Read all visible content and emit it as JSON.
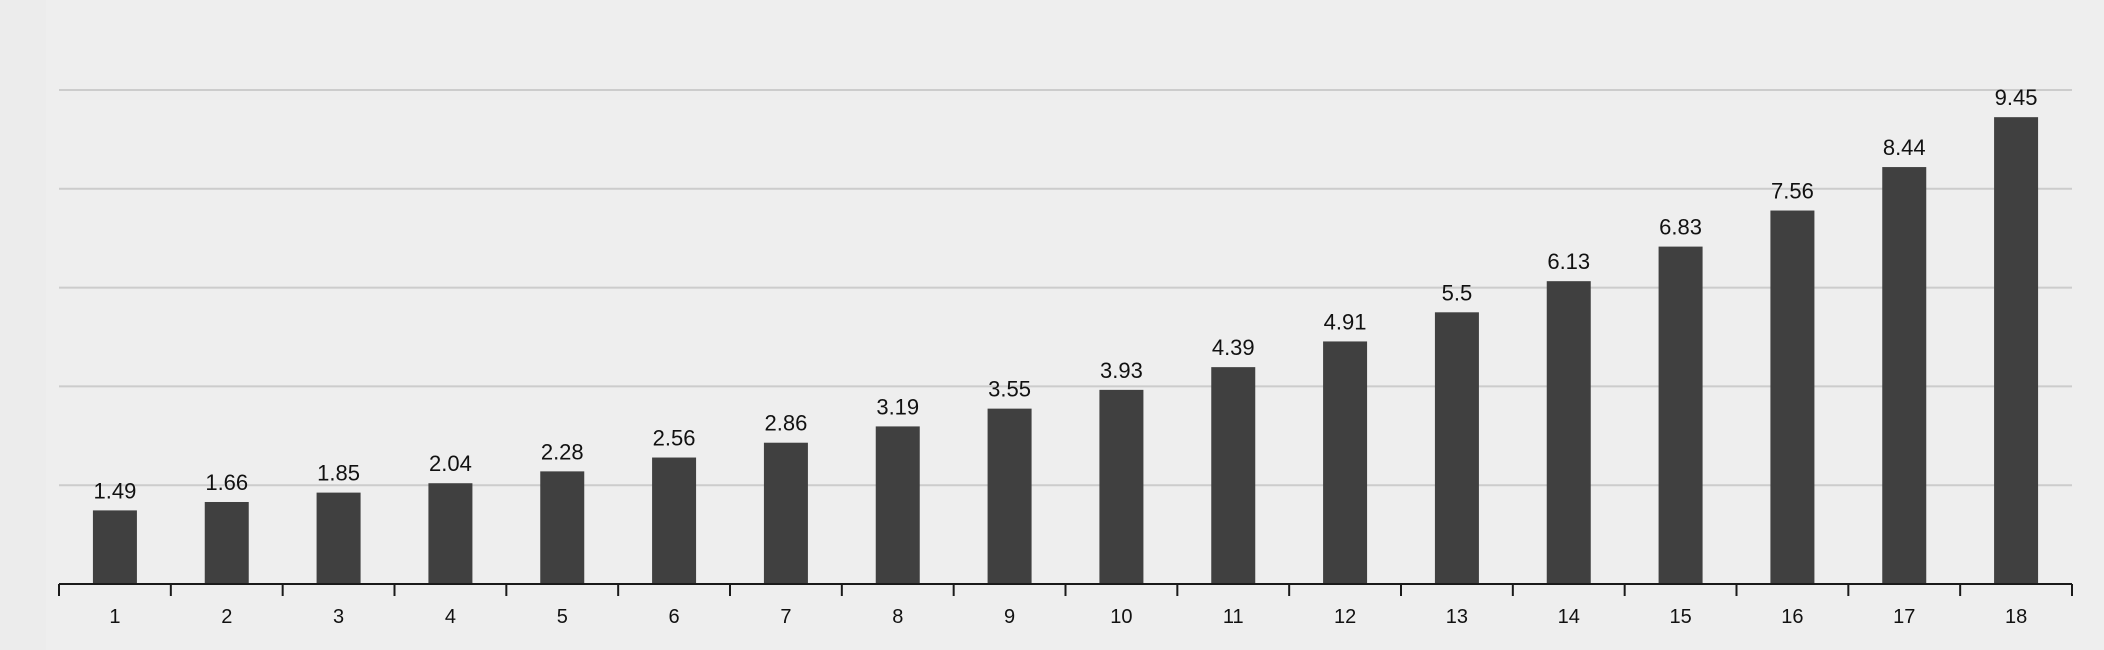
{
  "chart_data": {
    "type": "bar",
    "title": "",
    "xlabel": "",
    "ylabel": "",
    "categories": [
      "1",
      "2",
      "3",
      "4",
      "5",
      "6",
      "7",
      "8",
      "9",
      "10",
      "11",
      "12",
      "13",
      "14",
      "15",
      "16",
      "17",
      "18"
    ],
    "values": [
      1.49,
      1.66,
      1.85,
      2.04,
      2.28,
      2.56,
      2.86,
      3.19,
      3.55,
      3.93,
      4.39,
      4.91,
      5.5,
      6.13,
      6.83,
      7.56,
      8.44,
      9.45
    ],
    "ylim": [
      0,
      10
    ],
    "grid": true,
    "y_gridlines": [
      2,
      4,
      6,
      8,
      10
    ],
    "y_tick_labels_shown": false,
    "legend": "none",
    "colors": {
      "bar": "#404040",
      "grid": "#cccccc",
      "axis": "#1a1a1a",
      "background": "#eeeeee"
    }
  }
}
